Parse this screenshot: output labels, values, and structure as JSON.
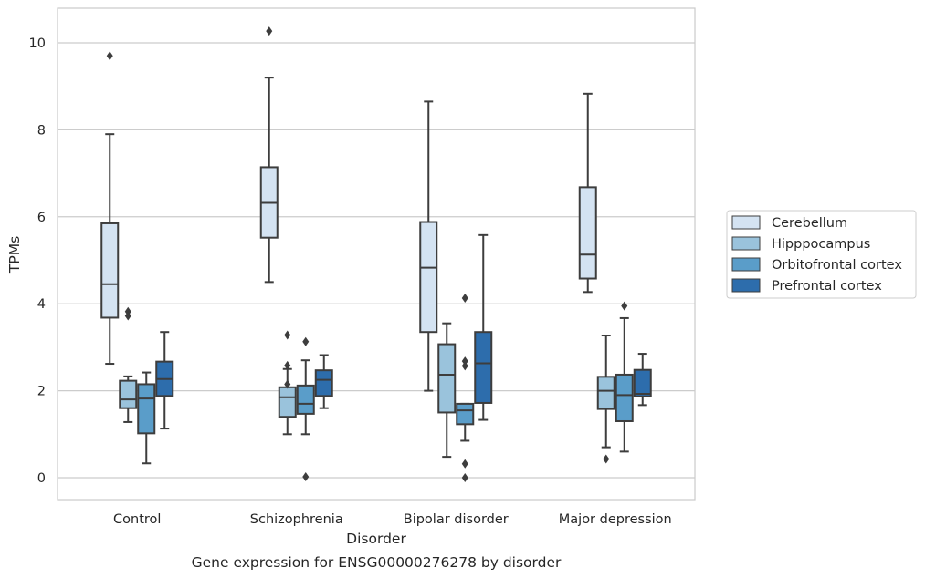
{
  "chart_data": {
    "type": "boxplot",
    "caption": "Gene expression for ENSG00000276278 by disorder",
    "xlabel": "Disorder",
    "ylabel": "TPMs",
    "ylim": [
      -0.5,
      10.8
    ],
    "yticks": [
      0,
      2,
      4,
      6,
      8,
      10
    ],
    "grid": "horizontal",
    "legend_position": "right",
    "categories": [
      "Control",
      "Schizophrenia",
      "Bipolar disorder",
      "Major depression"
    ],
    "series": [
      {
        "name": "Cerebellum",
        "color": "#d4e3f2",
        "boxes": [
          {
            "min": 2.62,
            "q1": 3.68,
            "median": 4.45,
            "q3": 5.85,
            "max": 7.9,
            "outliers": [
              9.7
            ]
          },
          {
            "min": 4.5,
            "q1": 5.52,
            "median": 6.32,
            "q3": 7.14,
            "max": 9.2,
            "outliers": [
              10.27
            ]
          },
          {
            "min": 2.0,
            "q1": 3.35,
            "median": 4.83,
            "q3": 5.88,
            "max": 8.65,
            "outliers": []
          },
          {
            "min": 4.27,
            "q1": 4.58,
            "median": 5.13,
            "q3": 6.68,
            "max": 8.83,
            "outliers": []
          }
        ]
      },
      {
        "name": "Hipppocampus",
        "color": "#9ac3dc",
        "boxes": [
          {
            "min": 1.28,
            "q1": 1.6,
            "median": 1.8,
            "q3": 2.23,
            "max": 2.33,
            "outliers": [
              3.82,
              3.72
            ]
          },
          {
            "min": 1.0,
            "q1": 1.4,
            "median": 1.85,
            "q3": 2.08,
            "max": 2.5,
            "outliers": [
              3.28,
              2.58,
              2.15
            ]
          },
          {
            "min": 0.48,
            "q1": 1.5,
            "median": 2.37,
            "q3": 3.07,
            "max": 3.55,
            "outliers": []
          },
          {
            "min": 0.7,
            "q1": 1.58,
            "median": 2.0,
            "q3": 2.32,
            "max": 3.27,
            "outliers": [
              0.43
            ]
          }
        ]
      },
      {
        "name": "Orbitofrontal cortex",
        "color": "#5a9dc9",
        "boxes": [
          {
            "min": 0.33,
            "q1": 1.02,
            "median": 1.82,
            "q3": 2.15,
            "max": 2.42,
            "outliers": []
          },
          {
            "min": 1.0,
            "q1": 1.47,
            "median": 1.7,
            "q3": 2.12,
            "max": 2.7,
            "outliers": [
              3.13,
              0.02
            ]
          },
          {
            "min": 0.85,
            "q1": 1.23,
            "median": 1.55,
            "q3": 1.7,
            "max": 1.7,
            "outliers": [
              4.13,
              2.68,
              2.57,
              0.32,
              0.0
            ]
          },
          {
            "min": 0.6,
            "q1": 1.3,
            "median": 1.9,
            "q3": 2.37,
            "max": 3.67,
            "outliers": [
              3.95
            ]
          }
        ]
      },
      {
        "name": "Prefrontal cortex",
        "color": "#2d6dac",
        "boxes": [
          {
            "min": 1.13,
            "q1": 1.88,
            "median": 2.27,
            "q3": 2.67,
            "max": 3.35,
            "outliers": []
          },
          {
            "min": 1.6,
            "q1": 1.88,
            "median": 2.25,
            "q3": 2.47,
            "max": 2.82,
            "outliers": []
          },
          {
            "min": 1.33,
            "q1": 1.72,
            "median": 2.63,
            "q3": 3.35,
            "max": 5.58,
            "outliers": []
          },
          {
            "min": 1.67,
            "q1": 1.87,
            "median": 1.93,
            "q3": 2.48,
            "max": 2.85,
            "outliers": []
          }
        ]
      }
    ]
  }
}
